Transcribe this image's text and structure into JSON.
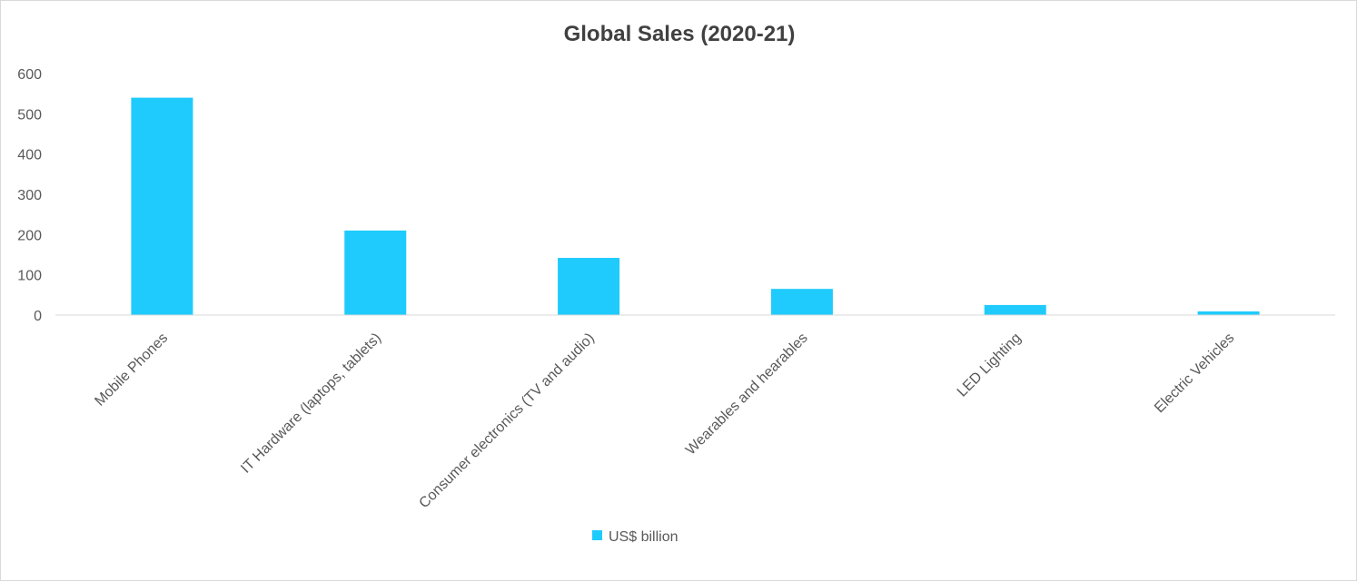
{
  "chart_data": {
    "type": "bar",
    "title": "Global Sales (2020-21)",
    "xlabel": "",
    "ylabel": "",
    "ylim": [
      0,
      600
    ],
    "yticks": [
      0,
      100,
      200,
      300,
      400,
      500,
      600
    ],
    "grid": false,
    "legend_position": "bottom",
    "categories": [
      "Mobile Phones",
      "IT Hardware (laptops, tablets)",
      "Consumer electronics (TV and audio)",
      "Wearables and hearables",
      "LED Lighting",
      "Electric Vehicles"
    ],
    "series": [
      {
        "name": "US$ billion",
        "color": "#1ecbfc",
        "values": [
          540,
          210,
          142,
          65,
          25,
          9
        ]
      }
    ]
  }
}
